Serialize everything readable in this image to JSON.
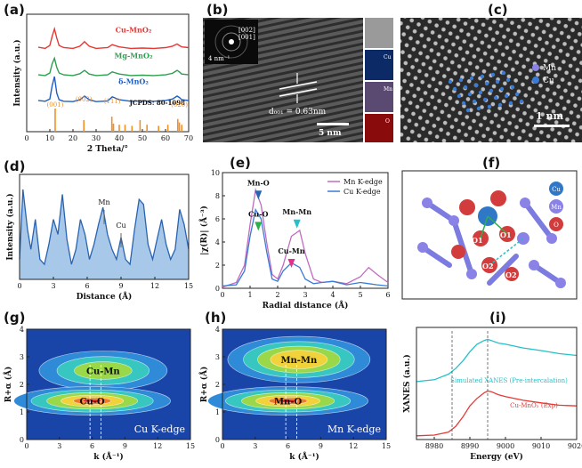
{
  "panels": {
    "a": {
      "label": "(a)",
      "chart_data": {
        "type": "line",
        "xlabel": "2 Theta/°",
        "ylabel": "Intensity (a.u.)",
        "xlim": [
          0,
          70
        ],
        "xticks": [
          "0",
          "10",
          "20",
          "30",
          "40",
          "50",
          "60",
          "70"
        ],
        "series": [
          {
            "name": "Cu-MnO₂",
            "color": "#e53935",
            "x": [
              5,
              8,
              10,
              11,
              12,
              13,
              14,
              16,
              20,
              23,
              25,
              27,
              30,
              35,
              37,
              40,
              45,
              50,
              55,
              60,
              63,
              65,
              66,
              67,
              70
            ],
            "y": [
              0.15,
              0.12,
              0.2,
              0.45,
              0.65,
              0.4,
              0.2,
              0.14,
              0.12,
              0.18,
              0.3,
              0.18,
              0.12,
              0.14,
              0.22,
              0.16,
              0.12,
              0.13,
              0.12,
              0.14,
              0.18,
              0.24,
              0.2,
              0.16,
              0.14
            ]
          },
          {
            "name": "Mg-MnO₂",
            "color": "#2e9e4f",
            "x": [
              5,
              8,
              10,
              11,
              12,
              13,
              14,
              16,
              20,
              23,
              25,
              27,
              30,
              35,
              37,
              40,
              45,
              50,
              55,
              60,
              63,
              65,
              66,
              67,
              70
            ],
            "y": [
              0.1,
              0.08,
              0.15,
              0.4,
              0.55,
              0.3,
              0.15,
              0.1,
              0.08,
              0.13,
              0.22,
              0.12,
              0.08,
              0.1,
              0.18,
              0.12,
              0.08,
              0.09,
              0.08,
              0.1,
              0.14,
              0.22,
              0.18,
              0.12,
              0.1
            ]
          },
          {
            "name": "δ-MnO₂",
            "color": "#1e5fc4",
            "x": [
              5,
              8,
              10,
              11,
              12,
              13,
              14,
              16,
              20,
              23,
              25,
              27,
              30,
              35,
              37,
              40,
              45,
              50,
              55,
              60,
              63,
              65,
              66,
              67,
              70
            ],
            "y": [
              0.1,
              0.08,
              0.14,
              0.5,
              0.75,
              0.3,
              0.12,
              0.08,
              0.07,
              0.12,
              0.22,
              0.12,
              0.07,
              0.09,
              0.2,
              0.12,
              0.08,
              0.09,
              0.08,
              0.1,
              0.14,
              0.22,
              0.18,
              0.12,
              0.1
            ]
          }
        ],
        "reference": {
          "name": "JCPDS: 80-1098",
          "peaks": [
            12.3,
            24.7,
            36.8,
            37.5,
            40,
            42.5,
            45.5,
            49,
            52,
            57,
            61,
            65.3,
            66,
            67
          ],
          "heights": [
            1,
            0.5,
            0.65,
            0.35,
            0.3,
            0.3,
            0.25,
            0.5,
            0.3,
            0.25,
            0.3,
            0.55,
            0.4,
            0.3
          ],
          "hkl_labels": [
            "(001)",
            "(002)",
            "(111)",
            "(020)"
          ]
        }
      }
    },
    "b": {
      "label": "(b)",
      "inset_labels": [
        "[002]",
        "[001]",
        "4 nm⁻¹"
      ],
      "dspacing": "d₀₀₁ = 0.63nm",
      "scalebar": "5 nm",
      "map_labels": [
        "Cu",
        "Mn",
        "O"
      ]
    },
    "c": {
      "label": "(c)",
      "legend": [
        "Mn",
        "Cu"
      ],
      "scalebar": "1 nm"
    },
    "d": {
      "label": "(d)",
      "chart_data": {
        "type": "area",
        "xlabel": "Distance (Å)",
        "ylabel": "Intensity (a.u.)",
        "xlim": [
          0,
          15
        ],
        "xticks": [
          "0",
          "3",
          "6",
          "9",
          "12",
          "15"
        ],
        "x": [
          0,
          0.3,
          0.7,
          1,
          1.4,
          1.8,
          2.2,
          2.6,
          3,
          3.4,
          3.8,
          4.2,
          4.6,
          5,
          5.4,
          5.8,
          6.2,
          6.6,
          7,
          7.4,
          7.8,
          8.2,
          8.6,
          9,
          9.4,
          9.8,
          10.2,
          10.6,
          11,
          11.4,
          11.8,
          12.2,
          12.6,
          13,
          13.4,
          13.8,
          14.2,
          14.6,
          15
        ],
        "y": [
          0.2,
          0.9,
          0.5,
          0.3,
          0.6,
          0.2,
          0.15,
          0.35,
          0.6,
          0.45,
          0.85,
          0.4,
          0.15,
          0.3,
          0.6,
          0.45,
          0.2,
          0.35,
          0.55,
          0.72,
          0.45,
          0.3,
          0.2,
          0.42,
          0.2,
          0.15,
          0.5,
          0.8,
          0.75,
          0.35,
          0.2,
          0.4,
          0.6,
          0.35,
          0.2,
          0.3,
          0.7,
          0.55,
          0.3
        ],
        "annotations": [
          {
            "text": "Mn",
            "x": 7.5
          },
          {
            "text": "Cu",
            "x": 9.0
          }
        ]
      }
    },
    "e": {
      "label": "(e)",
      "chart_data": {
        "type": "line",
        "xlabel": "Radial distance (Å)",
        "ylabel": "|χ(R)| (Å⁻³)",
        "xlim": [
          0,
          6
        ],
        "ylim": [
          0,
          10
        ],
        "xticks": [
          "0",
          "1",
          "2",
          "3",
          "4",
          "5",
          "6"
        ],
        "yticks": [
          "0",
          "2",
          "4",
          "6",
          "8",
          "10"
        ],
        "series": [
          {
            "name": "Mn K-edge",
            "color": "#c06cc0",
            "x": [
              0,
              0.5,
              0.8,
              1.0,
              1.2,
              1.4,
              1.6,
              1.8,
              2.0,
              2.2,
              2.5,
              2.8,
              3.0,
              3.3,
              3.6,
              4.0,
              4.5,
              5.0,
              5.3,
              5.6,
              6.0
            ],
            "y": [
              0.1,
              0.5,
              2.0,
              5.5,
              8.5,
              7.2,
              4.0,
              1.2,
              0.8,
              2.0,
              4.5,
              5.0,
              3.0,
              0.8,
              0.5,
              0.6,
              0.4,
              1.0,
              1.8,
              1.2,
              0.5
            ]
          },
          {
            "name": "Cu K-edge",
            "color": "#3a7bd5",
            "x": [
              0,
              0.5,
              0.8,
              1.0,
              1.2,
              1.4,
              1.6,
              1.8,
              2.0,
              2.2,
              2.5,
              2.8,
              3.0,
              3.3,
              3.6,
              4.0,
              4.5,
              5.0,
              5.3,
              5.6,
              6.0
            ],
            "y": [
              0.2,
              0.3,
              1.5,
              4.5,
              6.8,
              6.0,
              3.2,
              0.8,
              0.6,
              1.5,
              2.2,
              1.8,
              0.8,
              0.4,
              0.5,
              0.6,
              0.3,
              0.5,
              0.4,
              0.3,
              0.2
            ]
          }
        ],
        "annotations": [
          "Mn-O",
          "Cu-O",
          "Mn-Mn",
          "Cu-Mn"
        ]
      }
    },
    "f": {
      "label": "(f)",
      "legend": [
        "Cu",
        "Mn",
        "O"
      ],
      "atom_labels": [
        "O1",
        "O1",
        "O2",
        "O2"
      ]
    },
    "g": {
      "label": "(g)",
      "xlabel": "k (Å⁻¹)",
      "ylabel": "R+α (Å)",
      "xticks": [
        "0",
        "3",
        "6",
        "9",
        "12",
        "15"
      ],
      "yticks": [
        "0",
        "1",
        "2",
        "3",
        "4"
      ],
      "annotations": [
        "Cu-Mn",
        "Cu-O"
      ],
      "caption": "Cu K-edge"
    },
    "h": {
      "label": "(h)",
      "xlabel": "k (Å⁻¹)",
      "ylabel": "R+α (Å)",
      "xticks": [
        "0",
        "3",
        "6",
        "9",
        "12",
        "15"
      ],
      "yticks": [
        "0",
        "1",
        "2",
        "3",
        "4"
      ],
      "annotations": [
        "Mn-Mn",
        "Mn-O"
      ],
      "caption": "Mn K-edge"
    },
    "i": {
      "label": "(i)",
      "chart_data": {
        "type": "line",
        "xlabel": "Energy (eV)",
        "ylabel": "XANES (a.u.)",
        "xlim": [
          8975,
          9020
        ],
        "xticks": [
          "8980",
          "8990",
          "9000",
          "9010",
          "9020"
        ],
        "series": [
          {
            "name": "Simulated XANES (Pre-intercalation)",
            "color": "#25c0c8",
            "x": [
              8975,
              8980,
              8984,
              8986,
              8988,
              8990,
              8992,
              8994,
              8995,
              8996,
              8998,
              9000,
              9005,
              9010,
              9015,
              9020
            ],
            "y": [
              1.55,
              1.6,
              1.75,
              1.9,
              2.1,
              2.35,
              2.55,
              2.65,
              2.68,
              2.65,
              2.58,
              2.55,
              2.45,
              2.38,
              2.3,
              2.25
            ]
          },
          {
            "name": "Cu-MnO₂ (Exp)",
            "color": "#e53935",
            "x": [
              8975,
              8980,
              8984,
              8986,
              8988,
              8990,
              8992,
              8994,
              8995,
              8996,
              8998,
              9000,
              9005,
              9010,
              9015,
              9020
            ],
            "y": [
              0.1,
              0.12,
              0.2,
              0.35,
              0.6,
              0.9,
              1.1,
              1.25,
              1.3,
              1.28,
              1.2,
              1.15,
              1.05,
              0.98,
              0.92,
              0.9
            ]
          }
        ]
      }
    }
  }
}
